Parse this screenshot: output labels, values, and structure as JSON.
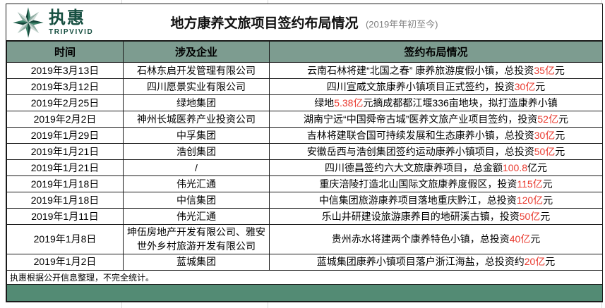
{
  "brand": {
    "name_cn": "执惠",
    "name_en": "TRIPVIVID"
  },
  "header": {
    "title": "地方康养文旅项目签约布局情况",
    "subtitle": "(2019年年初至今)"
  },
  "colors": {
    "brand_green": "#174f41",
    "header_row_bg": "#7d9c90",
    "bottom_bar_green": "#538b74",
    "highlight_red": "#e9392e",
    "subtitle_gray": "#808080"
  },
  "table": {
    "columns": [
      "时间",
      "涉及企业",
      "签约布局情况"
    ],
    "rows": [
      {
        "date": "2019年3月13日",
        "company": "石林东启开发管理有限公司",
        "detail": [
          {
            "text": "云南石林将建“北国之春” 康养旅游度假小镇，总投资"
          },
          {
            "text": "35亿",
            "red": true
          },
          {
            "text": "元"
          }
        ]
      },
      {
        "date": "2019年3月12日",
        "company": "四川愿景实业有限公司",
        "detail": [
          {
            "text": "四川宣威文旅康养小镇项目正式签约，投资"
          },
          {
            "text": "30亿",
            "red": true
          },
          {
            "text": "元"
          }
        ]
      },
      {
        "date": "2019年2月25日",
        "company": "绿地集团",
        "detail": [
          {
            "text": "绿地"
          },
          {
            "text": "5.38亿",
            "red": true
          },
          {
            "text": "元摘成都都江堰336亩地块，拟打造康养小镇"
          }
        ]
      },
      {
        "date": "2019年2月2日",
        "company": "神州长城医养产业投资公司",
        "detail": [
          {
            "text": "湖南宁远“中国舜帝古城”医养文旅产业项目签约，投资"
          },
          {
            "text": "52亿",
            "red": true
          },
          {
            "text": "元"
          }
        ]
      },
      {
        "date": "2019年1月29日",
        "company": "中孚集团",
        "detail": [
          {
            "text": "吉林将建联合国可持续发展和生态康养小镇，总投资"
          },
          {
            "text": "30亿",
            "red": true
          },
          {
            "text": "元"
          }
        ]
      },
      {
        "date": "2019年1月21日",
        "company": "浩创集团",
        "detail": [
          {
            "text": "安徽岳西与浩创集团签约运动康养小镇项目，总投资"
          },
          {
            "text": "50亿",
            "red": true
          },
          {
            "text": "元"
          }
        ]
      },
      {
        "date": "2019年1月21日",
        "company": "/",
        "detail": [
          {
            "text": "四川德昌签约六大文旅康养项目，总金额"
          },
          {
            "text": "100.8",
            "red": true
          },
          {
            "text": "亿元"
          }
        ]
      },
      {
        "date": "2019年1月18日",
        "company": "伟光汇通",
        "detail": [
          {
            "text": "重庆涪陵打造北山国际文旅康养度假区，投资"
          },
          {
            "text": "115亿",
            "red": true
          },
          {
            "text": "元"
          }
        ]
      },
      {
        "date": "2019年1月18日",
        "company": "中信集团",
        "detail": [
          {
            "text": "中信集团旅游康养项目落地重庆黔江，总投资"
          },
          {
            "text": "120亿",
            "red": true
          },
          {
            "text": "元"
          }
        ]
      },
      {
        "date": "2019年1月11日",
        "company": "伟光汇通",
        "detail": [
          {
            "text": "乐山井研建设旅游康养目的地研溪古镇，投资"
          },
          {
            "text": "50亿",
            "red": true
          },
          {
            "text": "元"
          }
        ]
      },
      {
        "date": "2019年1月8日",
        "company": "坤伍房地产开发有限公司、雅安世外乡村旅游开发有限公司",
        "detail": [
          {
            "text": "贵州赤水将建两个康养特色小镇，总投资"
          },
          {
            "text": "40亿",
            "red": true
          },
          {
            "text": "元"
          }
        ]
      },
      {
        "date": "2019年1月2日",
        "company": "蓝城集团",
        "detail": [
          {
            "text": "蓝城集团康养小镇项目落户浙江海盐，总投资约"
          },
          {
            "text": "20亿",
            "red": true
          },
          {
            "text": "元"
          }
        ]
      }
    ],
    "footnote": "执惠根据公开信息整理，不完全统计。"
  }
}
